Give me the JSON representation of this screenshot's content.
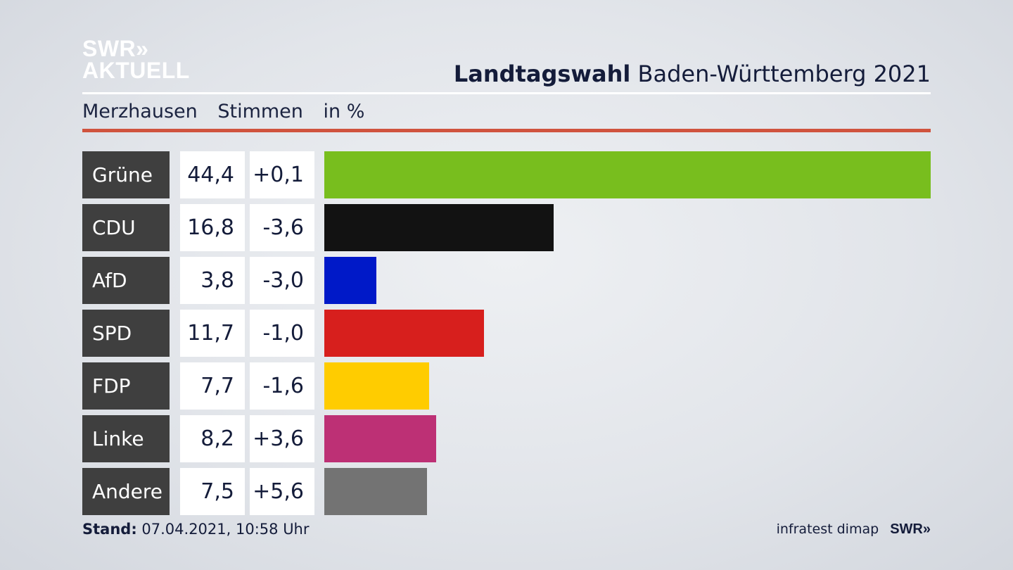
{
  "logo": {
    "line1": "SWR»",
    "line2": "AKTUELL"
  },
  "header": {
    "title_bold": "Landtagswahl",
    "title_rest": "Baden-Württemberg 2021"
  },
  "subtitle": {
    "place": "Merzhausen",
    "measure": "Stimmen",
    "unit": "in %"
  },
  "chart_data": {
    "type": "bar",
    "orientation": "horizontal",
    "categories": [
      "Grüne",
      "CDU",
      "AfD",
      "SPD",
      "FDP",
      "Linke",
      "Andere"
    ],
    "values": [
      44.4,
      16.8,
      3.8,
      11.7,
      7.7,
      8.2,
      7.5
    ],
    "value_labels": [
      "44,4",
      "16,8",
      "3,8",
      "11,7",
      "7,7",
      "8,2",
      "7,5"
    ],
    "diff_labels": [
      "+0,1",
      "-3,6",
      "-3,0",
      "-1,0",
      "-1,6",
      "+3,6",
      "+5,6"
    ],
    "colors": [
      "#78be1e",
      "#121212",
      "#0019c8",
      "#d71f1d",
      "#ffcc00",
      "#bd3075",
      "#737373"
    ],
    "xlim": [
      0,
      44.4
    ]
  },
  "footer": {
    "stand_label": "Stand:",
    "stand_value": "07.04.2021, 10:58 Uhr",
    "source": "infratest dimap",
    "brand": "SWR»"
  }
}
